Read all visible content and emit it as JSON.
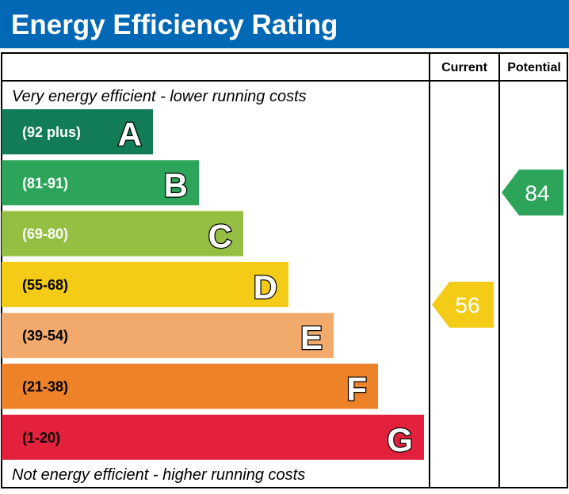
{
  "title": "Energy Efficiency Rating",
  "columns": {
    "current": "Current",
    "potential": "Potential"
  },
  "top_note": "Very energy efficient - lower running costs",
  "bottom_note": "Not energy efficient - higher running costs",
  "colors": {
    "header": "#0068b4"
  },
  "chart_data": {
    "type": "bar",
    "bands": [
      {
        "letter": "A",
        "range": "(92 plus)",
        "color": "#117c55"
      },
      {
        "letter": "B",
        "range": "(81-91)",
        "color": "#2ca55a"
      },
      {
        "letter": "C",
        "range": "(69-80)",
        "color": "#95bf43"
      },
      {
        "letter": "D",
        "range": "(55-68)",
        "color": "#f4cc17"
      },
      {
        "letter": "E",
        "range": "(39-54)",
        "color": "#f2aa6c"
      },
      {
        "letter": "F",
        "range": "(21-38)",
        "color": "#ed8229"
      },
      {
        "letter": "G",
        "range": "(1-20)",
        "color": "#e3213c"
      }
    ],
    "current": {
      "value": "56",
      "band": "D",
      "color": "#f4cc17"
    },
    "potential": {
      "value": "84",
      "band": "B",
      "color": "#2ca55a"
    }
  }
}
